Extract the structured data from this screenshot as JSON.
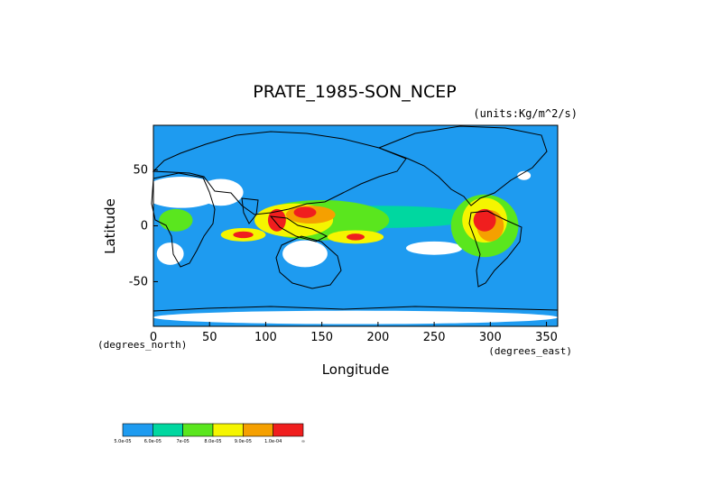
{
  "chart_data": {
    "type": "heatmap",
    "title": "PRATE_1985-SON_NCEP",
    "units": "(units:Kg/m^2/s)",
    "xlabel": "Longitude",
    "ylabel": "Latitude",
    "x_unit_label": "(degrees_east)",
    "y_unit_label": "(degrees_north)",
    "xlim": [
      0,
      360
    ],
    "ylim": [
      -90,
      90
    ],
    "x_ticks": [
      0,
      50,
      100,
      150,
      200,
      250,
      300,
      350
    ],
    "y_ticks": [
      -50,
      0,
      50
    ],
    "levels": [
      "5.0e-05",
      "6.0e-05",
      "7e-05",
      "8.0e-05",
      "9.0e-05",
      "1.0e-04",
      "∞"
    ],
    "level_colors": [
      "#1e9bf0",
      "#00d7a0",
      "#5ae61e",
      "#f5f500",
      "#f5a000",
      "#f01e1e"
    ],
    "regions": [
      {
        "level": 5,
        "lon": 110,
        "lat": 5,
        "rlon": 8,
        "rlat": 10
      },
      {
        "level": 5,
        "lon": 135,
        "lat": 12,
        "rlon": 10,
        "rlat": 5
      },
      {
        "level": 5,
        "lon": 80,
        "lat": -8,
        "rlon": 9,
        "rlat": 3
      },
      {
        "level": 5,
        "lon": 180,
        "lat": -10,
        "rlon": 8,
        "rlat": 3
      },
      {
        "level": 5,
        "lon": 295,
        "lat": 5,
        "rlon": 10,
        "rlat": 10
      },
      {
        "level": 4,
        "lon": 140,
        "lat": 10,
        "rlon": 22,
        "rlat": 8
      },
      {
        "level": 4,
        "lon": 300,
        "lat": 0,
        "rlon": 12,
        "rlat": 14
      },
      {
        "level": 3,
        "lon": 125,
        "lat": 5,
        "rlon": 35,
        "rlat": 15
      },
      {
        "level": 3,
        "lon": 80,
        "lat": -8,
        "rlon": 20,
        "rlat": 6
      },
      {
        "level": 3,
        "lon": 180,
        "lat": -10,
        "rlon": 25,
        "rlat": 6
      },
      {
        "level": 3,
        "lon": 295,
        "lat": 5,
        "rlon": 20,
        "rlat": 20
      },
      {
        "level": 2,
        "lon": 150,
        "lat": 5,
        "rlon": 60,
        "rlat": 18
      },
      {
        "level": 2,
        "lon": 20,
        "lat": 5,
        "rlon": 15,
        "rlat": 10
      },
      {
        "level": 2,
        "lon": 295,
        "lat": 0,
        "rlon": 30,
        "rlat": 28
      },
      {
        "level": 1,
        "lon": 200,
        "lat": 8,
        "rlon": 90,
        "rlat": 10
      },
      {
        "level": 1,
        "lon": 240,
        "lat": 12,
        "rlon": 30,
        "rlat": 4
      }
    ],
    "dry_areas": [
      {
        "lon": 25,
        "lat": 30,
        "rlon": 35,
        "rlat": 14
      },
      {
        "lon": 60,
        "lat": 30,
        "rlon": 20,
        "rlat": 12
      },
      {
        "lon": 135,
        "lat": -25,
        "rlon": 20,
        "rlat": 12
      },
      {
        "lon": 15,
        "lat": -25,
        "rlon": 12,
        "rlat": 10
      },
      {
        "lon": 250,
        "lat": -20,
        "rlon": 25,
        "rlat": 6
      },
      {
        "lon": 180,
        "lat": -82,
        "rlon": 180,
        "rlat": 6
      },
      {
        "lon": 330,
        "lat": 45,
        "rlon": 6,
        "rlat": 4
      }
    ]
  }
}
